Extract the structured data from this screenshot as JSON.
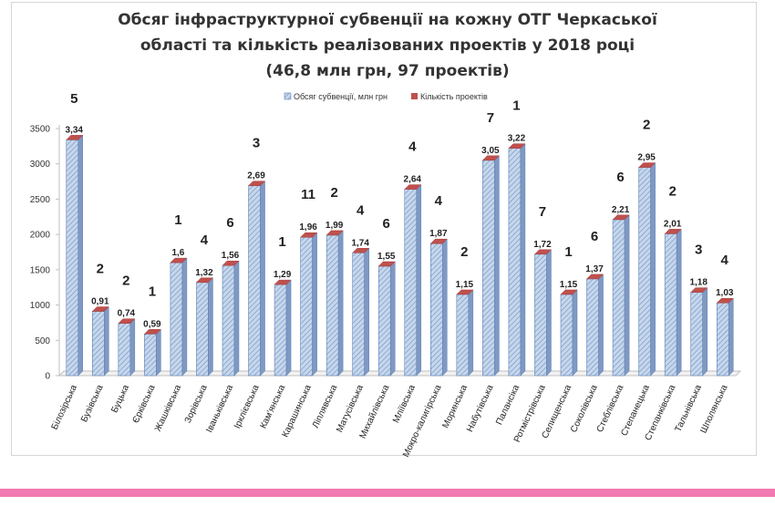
{
  "colors": {
    "bar_fill": "#b8cce4",
    "bar_hatch": "#5b7fb5",
    "bar_top": "#c0504d",
    "bar_side": "#7f99c2",
    "axis": "#bfbfbf",
    "text": "#333333",
    "stripe": "#f17ab0"
  },
  "chart_data": {
    "type": "bar",
    "title_lines": [
      "Обсяг інфраструктурної субвенції  на кожну ОТГ Черкаської",
      "області та кількість реалізованих проектів у 2018 році",
      "(46,8 млн грн, 97 проектів)"
    ],
    "legend": {
      "placement": "top-center",
      "items": [
        "Обсяг субвенції, млн грн",
        "Кількість проектів"
      ]
    },
    "ylim": [
      0,
      3500
    ],
    "yticks": [
      0,
      500,
      1000,
      1500,
      2000,
      2500,
      3000,
      3500
    ],
    "grid": false,
    "categories": [
      "Білозірська",
      "Бузівська",
      "Буцька",
      "Єрківська",
      "Жашківська",
      "Зорівська",
      "Іваньківська",
      "Ірклієвська",
      "Кам'янська",
      "Карашинська",
      "Ліплявська",
      "Матусівська",
      "Михайлівська",
      "Мліївська",
      "Мокро-калигірська",
      "Моринська",
      "Набутівська",
      "Палансіка",
      "Ротмістрівська",
      "Селищенська",
      "Соколівська",
      "Стеблівська",
      "Степанецька",
      "Степанківська",
      "Тальнівська",
      "Шполянська"
    ],
    "series": [
      {
        "name": "Обсяг субвенції, млн грн",
        "values": [
          3340,
          910,
          740,
          590,
          1600,
          1320,
          1560,
          2690,
          1290,
          1960,
          1990,
          1740,
          1550,
          2640,
          1870,
          1150,
          3050,
          3220,
          1720,
          1150,
          1370,
          2210,
          2950,
          2010,
          1180,
          1030
        ],
        "labels": [
          "3,34",
          "0,91",
          "0,74",
          "0,59",
          "1,6",
          "1,32",
          "1,56",
          "2,69",
          "1,29",
          "1,96",
          "1,99",
          "1,74",
          "1,55",
          "2,64",
          "1,87",
          "1,15",
          "3,05",
          "3,22",
          "1,72",
          "1,15",
          "1,37",
          "2,21",
          "2,95",
          "2,01",
          "1,18",
          "1,03"
        ]
      },
      {
        "name": "Кількість проектів",
        "values": [
          5,
          2,
          2,
          1,
          1,
          4,
          6,
          3,
          1,
          11,
          2,
          4,
          6,
          4,
          4,
          2,
          7,
          1,
          7,
          1,
          6,
          6,
          2,
          2,
          3,
          4
        ]
      }
    ]
  }
}
